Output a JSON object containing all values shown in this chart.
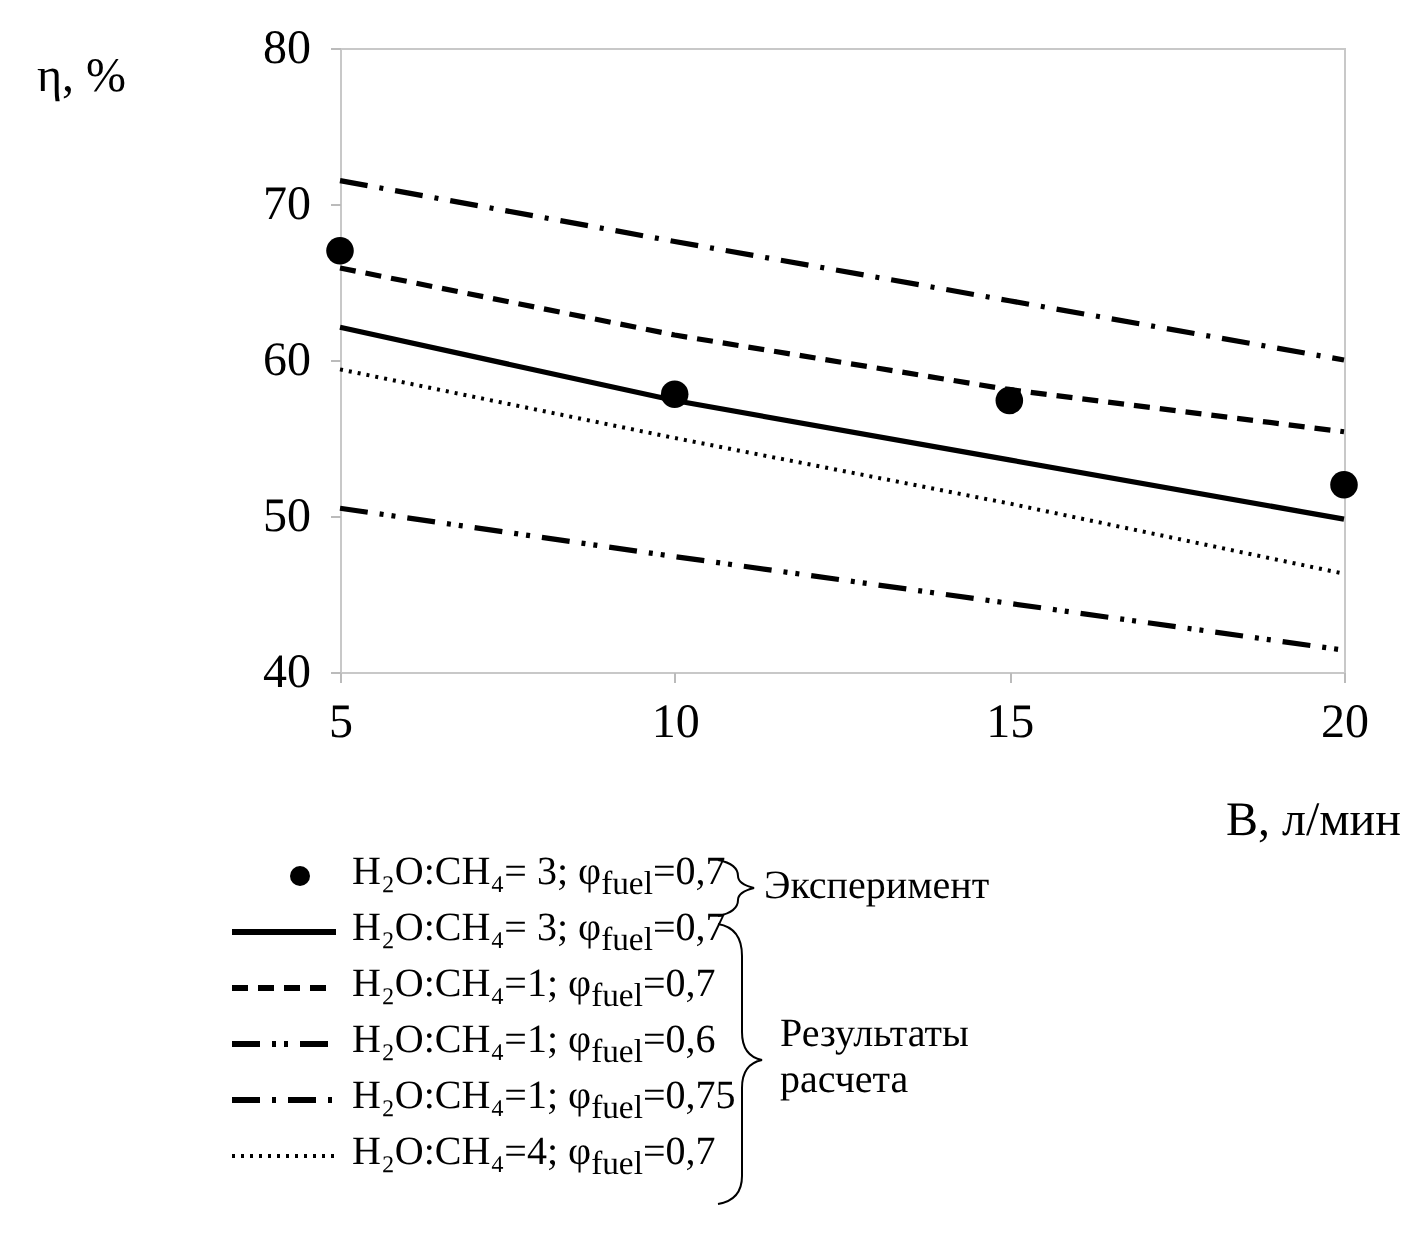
{
  "chart_data": {
    "type": "line",
    "xlabel": "B, л/мин",
    "ylabel": "η, %",
    "x": [
      5,
      10,
      15,
      20
    ],
    "series": [
      {
        "name": "H₂O:CH₄= 3; φ$_{fuel}$=0,7",
        "type": "scatter",
        "marker": "circle",
        "color": "#000000",
        "values": [
          67.0,
          57.8,
          57.4,
          52.0
        ]
      },
      {
        "name": "H₂O:CH₄= 3; φ$_{fuel}$=0,7",
        "line_style": "solid",
        "color": "#000000",
        "values": [
          62.1,
          57.4,
          53.6,
          49.8
        ]
      },
      {
        "name": "H₂O:CH₄=1; φ$_{fuel}$=0,7",
        "line_style": "dashed",
        "color": "#000000",
        "values": [
          65.9,
          61.6,
          58.1,
          55.4
        ]
      },
      {
        "name": "H₂O:CH₄=1; φ$_{fuel}$=0,6",
        "line_style": "dashdotdot",
        "color": "#000000",
        "values": [
          50.5,
          47.4,
          44.4,
          41.4
        ]
      },
      {
        "name": "H₂O:CH₄=1; φ$_{fuel}$=0,75",
        "line_style": "dashdot",
        "color": "#000000",
        "values": [
          71.5,
          67.6,
          63.8,
          60.0
        ]
      },
      {
        "name": "H₂O:CH₄=4; φ$_{fuel}$=0,7",
        "line_style": "dotted",
        "color": "#000000",
        "values": [
          59.4,
          55.0,
          50.8,
          46.3
        ]
      }
    ],
    "xlim": [
      5,
      20
    ],
    "xticks": [
      5,
      10,
      15,
      20
    ],
    "ylim": [
      40,
      80
    ],
    "yticks": [
      40,
      50,
      60,
      70,
      80
    ],
    "grid": false,
    "legend": "bottom",
    "marker": "none",
    "annotations": [
      "Эксперимент",
      "Результаты расчета"
    ]
  }
}
